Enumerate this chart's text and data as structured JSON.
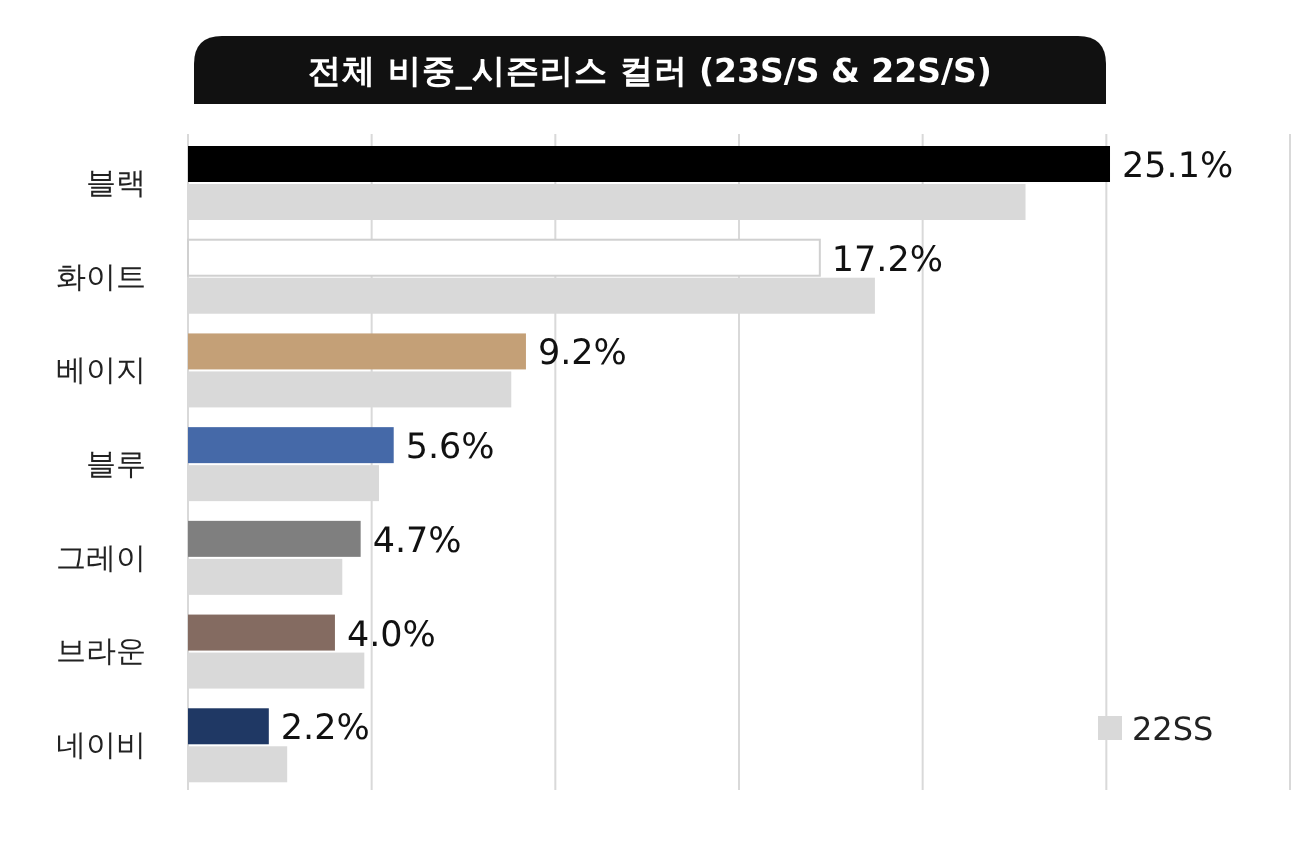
{
  "chart_data": {
    "type": "bar",
    "orientation": "horizontal",
    "title": "전체 비중_시즌리스 컬러 (23S/S & 22S/S)",
    "categories": [
      "블랙",
      "화이트",
      "베이지",
      "블루",
      "그레이",
      "브라운",
      "네이비"
    ],
    "series": [
      {
        "colors": [
          "#000000",
          "#ffffff",
          "#c4a077",
          "#4569a8",
          "#7f7f7f",
          "#846b61",
          "#1f3864"
        ],
        "values": [
          25.1,
          17.2,
          9.2,
          5.6,
          4.7,
          4.0,
          2.2
        ],
        "value_labels": [
          "25.1%",
          "17.2%",
          "9.2%",
          "5.6%",
          "4.7%",
          "4.0%",
          "2.2%"
        ]
      },
      {
        "name": "22SS",
        "color": "#d9d9d9",
        "values": [
          22.8,
          18.7,
          8.8,
          5.2,
          4.2,
          4.8,
          2.7
        ]
      }
    ],
    "xlim": [
      0,
      30
    ],
    "xticks": [
      {
        "value": 0,
        "label": null
      },
      {
        "value": 5,
        "label": null
      },
      {
        "value": 10,
        "label": null
      },
      {
        "value": 15,
        "label": null
      },
      {
        "value": 20,
        "label": null
      },
      {
        "value": 25,
        "label": null
      },
      {
        "value": 30,
        "label": null
      }
    ],
    "grid": "x",
    "legend": "bottom right",
    "tick_labels": "y"
  }
}
